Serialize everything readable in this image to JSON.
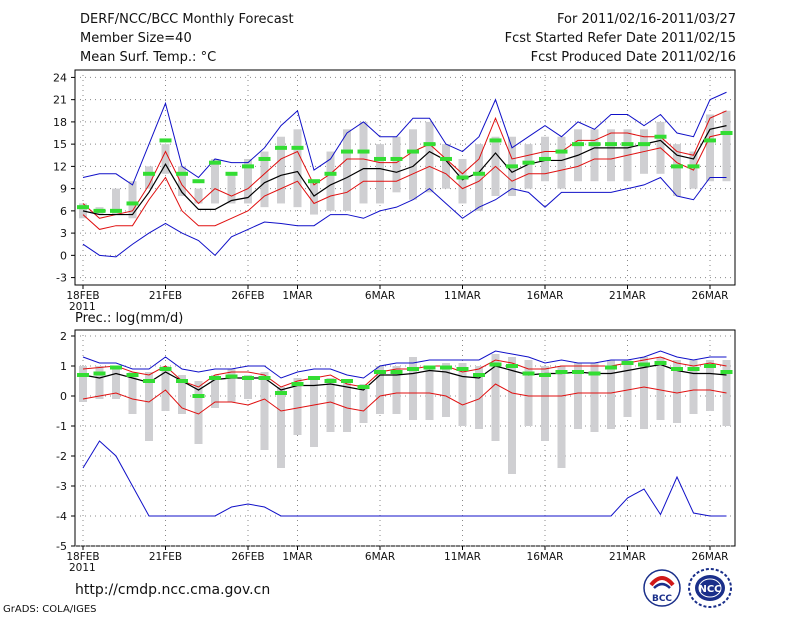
{
  "header": {
    "title": "DERF/NCC/BCC Monthly Forecast",
    "member_size": "Member Size=40",
    "variable": "Mean Surf. Temp.: °C",
    "period": "For 2011/02/16-2011/03/27",
    "started": "Fcst Started Refer Date 2011/02/15",
    "produced": "Fcst Produced Date 2011/02/16"
  },
  "footer": {
    "url": "http://cmdp.ncc.cma.gov.cn",
    "credit": "GrADS: COLA/IGES"
  },
  "logos": {
    "bcc": "BCC",
    "ncc": "NCC"
  },
  "colors": {
    "max": "#1010c8",
    "min": "#1010c8",
    "upper": "#e01010",
    "lower": "#e01010",
    "mean": "#000000",
    "obs": "#33dd33",
    "box": "#cfcfd2",
    "grid": "#888888"
  },
  "chart_data": [
    {
      "type": "line",
      "title": "Mean Surf. Temp.: °C",
      "ylim": [
        -4,
        25
      ],
      "yticks": [
        -3,
        0,
        3,
        6,
        9,
        12,
        15,
        18,
        21,
        24
      ],
      "xtick_days": [
        0,
        5,
        10,
        13,
        18,
        23,
        28,
        33,
        38
      ],
      "xtick_labels": [
        "18FEB",
        "21FEB",
        "26FEB",
        "1MAR",
        "6MAR",
        "11MAR",
        "16MAR",
        "21MAR",
        "26MAR"
      ],
      "year_label": "2011",
      "x": [
        0,
        1,
        2,
        3,
        4,
        5,
        6,
        7,
        8,
        9,
        10,
        11,
        12,
        13,
        14,
        15,
        16,
        17,
        18,
        19,
        20,
        21,
        22,
        23,
        24,
        25,
        26,
        27,
        28,
        29,
        30,
        31,
        32,
        33,
        34,
        35,
        36,
        37,
        38,
        39
      ],
      "series": [
        {
          "name": "max",
          "values": [
            10.5,
            11,
            11,
            9.5,
            15,
            20.5,
            12,
            10.5,
            13,
            12.5,
            12.5,
            14.5,
            17.5,
            19.5,
            11.5,
            13,
            16.5,
            18,
            16,
            16,
            18.5,
            18.5,
            15,
            14,
            16,
            21,
            14.5,
            16,
            17.5,
            16,
            18,
            17,
            19,
            19,
            17.5,
            19,
            16.5,
            16,
            21,
            22
          ]
        },
        {
          "name": "upper",
          "values": [
            7,
            5,
            5.5,
            6,
            9.5,
            14,
            9.5,
            7,
            9,
            8,
            9,
            11,
            13,
            14,
            9.5,
            11,
            13,
            13,
            12.5,
            12.5,
            14,
            15,
            13,
            11,
            13,
            18.5,
            13,
            13.5,
            14,
            14,
            15.5,
            15.5,
            16.5,
            16.5,
            16,
            16,
            14,
            13.5,
            18.5,
            19.5
          ]
        },
        {
          "name": "mean",
          "values": [
            6,
            5.5,
            5.5,
            5.5,
            8.5,
            12.3,
            8.5,
            6.2,
            6.2,
            7.4,
            7.8,
            9.8,
            10.8,
            11.3,
            8,
            9.5,
            10.5,
            11.7,
            11.7,
            11.2,
            12,
            14,
            12.8,
            10.2,
            11.2,
            13.8,
            11.2,
            12.3,
            12.8,
            12.8,
            13.5,
            14.5,
            14.5,
            14.5,
            15,
            15.5,
            13.5,
            13,
            17,
            17.5
          ]
        },
        {
          "name": "lower",
          "values": [
            5.5,
            3.5,
            4,
            4,
            7.5,
            10.5,
            6,
            4,
            4,
            5,
            6,
            8,
            9,
            10,
            7,
            8,
            8.5,
            10,
            10,
            10,
            11,
            12,
            11,
            9,
            10,
            12,
            10,
            11,
            11,
            11.5,
            12,
            13,
            13,
            13.5,
            14,
            14.5,
            12.5,
            11.5,
            16,
            16.5
          ]
        },
        {
          "name": "min",
          "values": [
            1.5,
            0,
            -0.2,
            1.5,
            3,
            4.3,
            3,
            2,
            0,
            2.5,
            3.5,
            4.5,
            4.3,
            4,
            4,
            5.5,
            5.5,
            5,
            6,
            6.5,
            7.5,
            9,
            7,
            5,
            6.5,
            7.5,
            9,
            8.5,
            6.5,
            8.5,
            8.5,
            8.5,
            8.5,
            9,
            9.5,
            10.5,
            8,
            7.5,
            10.5,
            10.5
          ]
        },
        {
          "name": "observed",
          "values": [
            6.5,
            6,
            6,
            7,
            11,
            15.5,
            11,
            10,
            12.5,
            11,
            12,
            13,
            14.5,
            14.5,
            10,
            11,
            14,
            14,
            13,
            13,
            14,
            15,
            13,
            10.5,
            11,
            15.5,
            12,
            12.5,
            13,
            14,
            15,
            15,
            15,
            15,
            15,
            16,
            12,
            12,
            15.5,
            16.5
          ]
        }
      ],
      "boxes": [
        [
          5,
          7
        ],
        [
          5.5,
          6.5
        ],
        [
          5.5,
          9
        ],
        [
          5,
          10
        ],
        [
          9,
          12
        ],
        [
          11,
          15
        ],
        [
          8,
          12
        ],
        [
          7,
          9
        ],
        [
          7,
          13
        ],
        [
          7,
          11
        ],
        [
          7,
          13
        ],
        [
          6.5,
          14
        ],
        [
          7,
          16
        ],
        [
          6.5,
          17
        ],
        [
          5.5,
          10
        ],
        [
          6,
          14
        ],
        [
          6,
          17
        ],
        [
          7,
          18
        ],
        [
          7,
          15
        ],
        [
          8.5,
          16
        ],
        [
          7.5,
          17
        ],
        [
          8.5,
          18
        ],
        [
          9,
          15
        ],
        [
          7,
          13
        ],
        [
          6,
          15
        ],
        [
          8,
          16
        ],
        [
          8,
          16
        ],
        [
          9,
          15
        ],
        [
          10,
          16
        ],
        [
          9,
          16
        ],
        [
          10,
          17
        ],
        [
          10,
          17
        ],
        [
          10,
          17
        ],
        [
          10,
          17
        ],
        [
          11,
          17
        ],
        [
          11,
          18
        ],
        [
          8,
          15
        ],
        [
          9,
          14
        ],
        [
          10,
          19
        ],
        [
          10,
          19.5
        ]
      ]
    },
    {
      "type": "line",
      "title": "Prec.: log(mm/d)",
      "ylim": [
        -5,
        2.2
      ],
      "yticks": [
        -5,
        -4,
        -3,
        -2,
        -1,
        0,
        1,
        2
      ],
      "xtick_days": [
        0,
        5,
        10,
        13,
        18,
        23,
        28,
        33,
        38
      ],
      "xtick_labels": [
        "18FEB",
        "21FEB",
        "26FEB",
        "1MAR",
        "6MAR",
        "11MAR",
        "16MAR",
        "21MAR",
        "26MAR"
      ],
      "year_label": "2011",
      "x": [
        0,
        1,
        2,
        3,
        4,
        5,
        6,
        7,
        8,
        9,
        10,
        11,
        12,
        13,
        14,
        15,
        16,
        17,
        18,
        19,
        20,
        21,
        22,
        23,
        24,
        25,
        26,
        27,
        28,
        29,
        30,
        31,
        32,
        33,
        34,
        35,
        36,
        37,
        38,
        39
      ],
      "series": [
        {
          "name": "max",
          "values": [
            1.3,
            1.1,
            1.1,
            0.9,
            0.9,
            1.3,
            0.9,
            0.8,
            0.9,
            0.9,
            1,
            1,
            0.6,
            0.8,
            0.9,
            0.9,
            0.7,
            0.6,
            1,
            1.1,
            1.1,
            1.2,
            1.2,
            1.2,
            1.2,
            1.5,
            1.4,
            1.3,
            1.1,
            1.2,
            1.1,
            1.1,
            1.2,
            1.2,
            1.3,
            1.5,
            1.3,
            1.2,
            1.3,
            1.3
          ]
        },
        {
          "name": "upper",
          "values": [
            0.9,
            0.95,
            1,
            0.8,
            0.7,
            1,
            0.5,
            0.3,
            0.7,
            0.8,
            0.8,
            0.7,
            0.3,
            0.5,
            0.6,
            0.7,
            0.4,
            0.3,
            0.8,
            0.9,
            0.9,
            1,
            1,
            0.8,
            0.9,
            1.2,
            1.1,
            0.9,
            0.9,
            1,
            1,
            1,
            1,
            1.1,
            1.2,
            1.3,
            1.1,
            1,
            1.1,
            1
          ]
        },
        {
          "name": "mean",
          "values": [
            0.7,
            0.6,
            0.75,
            0.6,
            0.45,
            0.8,
            0.5,
            0.2,
            0.55,
            0.6,
            0.6,
            0.6,
            0.2,
            0.35,
            0.35,
            0.4,
            0.3,
            0.2,
            0.7,
            0.7,
            0.75,
            0.85,
            0.8,
            0.65,
            0.6,
            1,
            0.85,
            0.7,
            0.75,
            0.75,
            0.8,
            0.75,
            0.75,
            0.85,
            0.95,
            1.05,
            0.85,
            0.75,
            0.75,
            0.7
          ]
        },
        {
          "name": "lower",
          "values": [
            -0.1,
            0,
            0.1,
            -0.1,
            -0.2,
            0.2,
            -0.4,
            -0.6,
            -0.2,
            -0.2,
            -0.3,
            -0.1,
            -0.5,
            -0.4,
            -0.3,
            -0.2,
            -0.4,
            -0.5,
            0,
            0.1,
            0.1,
            0.1,
            0,
            -0.3,
            -0.1,
            0.4,
            0.1,
            0,
            0,
            0,
            0.1,
            0.1,
            0.1,
            0.2,
            0.3,
            0.2,
            0.1,
            0.2,
            0.2,
            0.1
          ]
        },
        {
          "name": "min",
          "values": [
            -2.4,
            -1.5,
            -2,
            -3,
            -4,
            -4,
            -4,
            -4,
            -4,
            -3.7,
            -3.6,
            -3.7,
            -4,
            -4,
            -4,
            -4,
            -4,
            -4,
            -4,
            -4,
            -4,
            -4,
            -4,
            -4,
            -4,
            -4,
            -4,
            -4,
            -4,
            -4,
            -4,
            -4,
            -4,
            -3.4,
            -3.1,
            -3.95,
            -2.7,
            -3.9,
            -4,
            -4
          ]
        },
        {
          "name": "observed",
          "values": [
            0.7,
            0.75,
            0.95,
            0.7,
            0.5,
            0.9,
            0.5,
            0,
            0.6,
            0.65,
            0.6,
            0.6,
            0.1,
            0.4,
            0.6,
            0.5,
            0.5,
            0.3,
            0.8,
            0.8,
            0.9,
            0.95,
            0.95,
            0.9,
            0.7,
            1.05,
            1,
            0.75,
            0.7,
            0.8,
            0.8,
            0.75,
            0.95,
            1.1,
            1.05,
            1.1,
            0.9,
            0.9,
            1,
            0.8
          ]
        }
      ],
      "boxes": [
        [
          -0.2,
          1
        ],
        [
          -0.1,
          1
        ],
        [
          -0.1,
          1
        ],
        [
          -0.6,
          0.8
        ],
        [
          -1.5,
          0.8
        ],
        [
          -0.5,
          1
        ],
        [
          -0.6,
          0.7
        ],
        [
          -1.6,
          0.5
        ],
        [
          -0.4,
          0.7
        ],
        [
          -0.2,
          0.9
        ],
        [
          -0.1,
          0.7
        ],
        [
          -1.8,
          0.8
        ],
        [
          -2.4,
          0.3
        ],
        [
          -1.3,
          0.6
        ],
        [
          -1.7,
          0.6
        ],
        [
          -1.2,
          0.6
        ],
        [
          -1.2,
          0.5
        ],
        [
          -0.9,
          0.4
        ],
        [
          -0.6,
          1
        ],
        [
          -0.6,
          1
        ],
        [
          -0.8,
          1.3
        ],
        [
          -0.8,
          1
        ],
        [
          -0.7,
          1.1
        ],
        [
          -1,
          1.1
        ],
        [
          -1.1,
          1
        ],
        [
          -1.5,
          1.4
        ],
        [
          -2.6,
          1.3
        ],
        [
          -1,
          1.2
        ],
        [
          -1.5,
          1
        ],
        [
          -2.4,
          1
        ],
        [
          -1.1,
          1.1
        ],
        [
          -1.2,
          1.1
        ],
        [
          -1.1,
          1.2
        ],
        [
          -0.7,
          1.2
        ],
        [
          -1.1,
          1.3
        ],
        [
          -0.8,
          1.3
        ],
        [
          -0.9,
          1.2
        ],
        [
          -0.6,
          1.2
        ],
        [
          -0.5,
          1.2
        ],
        [
          -1,
          1.2
        ]
      ]
    }
  ]
}
